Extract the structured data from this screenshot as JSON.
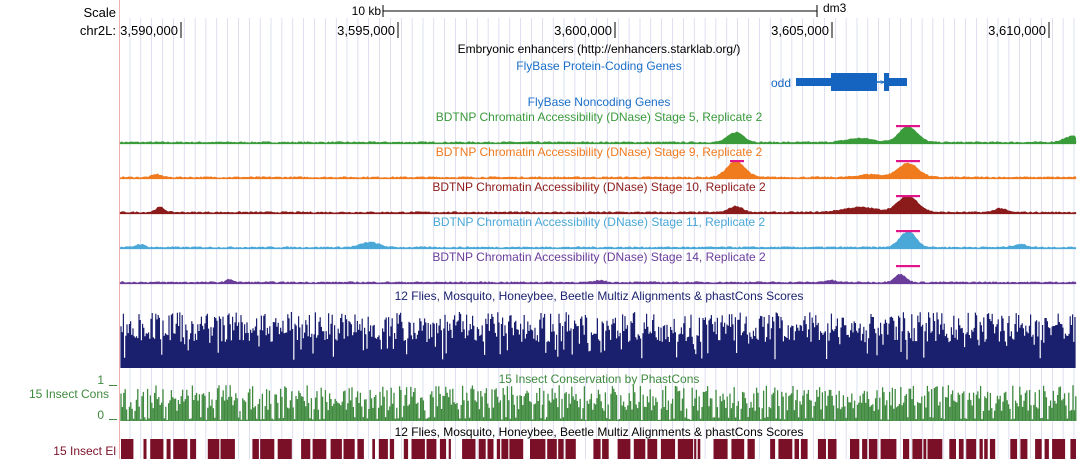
{
  "ruler": {
    "scale_label": "Scale",
    "scale_bar_label": "10 kb",
    "assembly": "dm3",
    "chrom_label": "chr2L:",
    "positions": [
      "3,590,000",
      "3,595,000",
      "3,600,000",
      "3,605,000",
      "3,610,000"
    ]
  },
  "tracks": {
    "enhancers_title": "Embryonic enhancers (http://enhancers.starklab.org/)",
    "flybase_coding_title": "FlyBase Protein-Coding Genes",
    "gene_name": "odd",
    "flybase_noncoding_title": "FlyBase Noncoding Genes",
    "dnase_tracks": [
      {
        "title": "BDTNP Chromatin Accessibility (DNase) Stage 5, Replicate 2",
        "color": "#3a9b3a"
      },
      {
        "title": "BDTNP Chromatin Accessibility (DNase) Stage 9, Replicate 2",
        "color": "#f07a1e"
      },
      {
        "title": "BDTNP Chromatin Accessibility (DNase) Stage 10, Replicate 2",
        "color": "#8b1a1a"
      },
      {
        "title": "BDTNP Chromatin Accessibility (DNase) Stage 11, Replicate 2",
        "color": "#4aa8d8"
      },
      {
        "title": "BDTNP Chromatin Accessibility (DNase) Stage 14, Replicate 2",
        "color": "#6a3d9a"
      }
    ],
    "multiz_title": "12 Flies, Mosquito, Honeybee, Beetle Multiz Alignments & phastCons Scores",
    "phastcons_title": "15 Insect Conservation by PhastCons",
    "phastcons_side_label": "15 Insect Cons",
    "phastcons_max": "1",
    "phastcons_min": "0",
    "multiz_title_2": "12 Flies, Mosquito, Honeybee, Beetle Multiz Alignments & phastCons Scores",
    "elements_side_label": "15 Insect El"
  },
  "colors": {
    "coding_gene": "#1565c0",
    "track_title_blue": "#1a6fc8",
    "multiz": "#1a1f6e",
    "phastcons": "#3f8a3f",
    "elements": "#7a1028",
    "peak_mark": "#e0158a",
    "grid": "#c8cbe8",
    "left_edge": "#f0b0b0"
  }
}
